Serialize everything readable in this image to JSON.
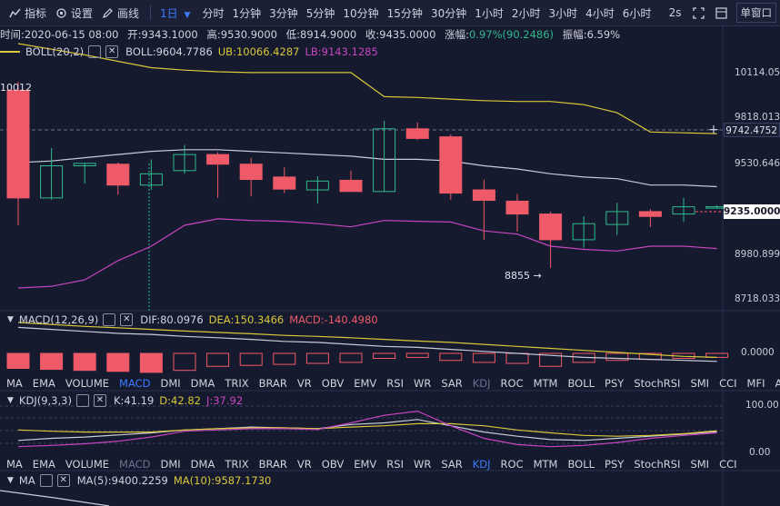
{
  "toolbar": {
    "indicators_label": "指标",
    "settings_label": "设置",
    "draw_label": "画线",
    "interval_selected": "1日",
    "timeframes": [
      "分时",
      "1分钟",
      "3分钟",
      "5分钟",
      "10分钟",
      "15分钟",
      "30分钟",
      "1小时",
      "2小时",
      "3小时",
      "4小时",
      "6小时"
    ],
    "refresh": "2s",
    "window_mode": "单窗口"
  },
  "ohlc": {
    "time": "时间:2020-06-15 08:00",
    "open": "开:9343.1000",
    "high": "高:9530.9000",
    "low": "低:8914.9000",
    "close": "收:9435.0000",
    "change_label": "涨幅:",
    "change_value": "0.97%(90.2486)",
    "amplitude": "振幅:6.59%"
  },
  "boll_legend": {
    "name": "BOLL(20,2)",
    "boll": "BOLL:9604.7786",
    "ub": "UB:10066.4287",
    "lb": "LB:9143.1285"
  },
  "price_axis": [
    "10114.054",
    "9818.0138",
    "9530.6466",
    "8980.8992",
    "8718.0338"
  ],
  "crosshair_price": "9742.4752",
  "last_price": "9235.0000",
  "annotations": {
    "high": "10012",
    "low": "8855 →"
  },
  "macd_legend": {
    "name": "MACD(12,26,9)",
    "dif": "DIF:80.0976",
    "dea": "DEA:150.3466",
    "macd": "MACD:-140.4980"
  },
  "macd_axis": "0.0000",
  "tabs1": [
    "MA",
    "EMA",
    "VOLUME",
    "MACD",
    "DMI",
    "DMA",
    "TRIX",
    "BRAR",
    "VR",
    "OBV",
    "EMV",
    "RSI",
    "WR",
    "SAR",
    "KDJ",
    "ROC",
    "MTM",
    "BOLL",
    "PSY",
    "StochRSI",
    "SMI",
    "CCI",
    "MFI",
    "ATR"
  ],
  "kdj_legend": {
    "name": "KDJ(9,3,3)",
    "k": "K:41.19",
    "d": "D:42.82",
    "j": "J:37.92"
  },
  "kdj_axis": [
    "100.00",
    "0.00"
  ],
  "tabs2": [
    "MA",
    "EMA",
    "VOLUME",
    "MACD",
    "DMI",
    "DMA",
    "TRIX",
    "BRAR",
    "VR",
    "OBV",
    "EMV",
    "RSI",
    "WR",
    "SAR",
    "KDJ",
    "ROC",
    "MTM",
    "BOLL",
    "PSY",
    "StochRSI",
    "SMI",
    "CCI"
  ],
  "ma_legend": {
    "name": "MA",
    "ma5": "MA(5):9400.2259",
    "ma10": "MA(10):9587.1730"
  },
  "colors": {
    "up": "#2fb98d",
    "down": "#ef5a68",
    "accent": "#3a7bff",
    "upper": "#d8c83a",
    "mid": "#c8ccd8",
    "lower": "#c845c0",
    "bg": "#161a2e"
  },
  "chart_data": {
    "type": "candlestick",
    "price_range": [
      8600,
      10250
    ],
    "candles": [
      {
        "o": 9960,
        "h": 10012,
        "l": 9120,
        "c": 9290
      },
      {
        "o": 9290,
        "h": 9600,
        "l": 9280,
        "c": 9490
      },
      {
        "o": 9490,
        "h": 9510,
        "l": 9380,
        "c": 9505
      },
      {
        "o": 9500,
        "h": 9510,
        "l": 9310,
        "c": 9370
      },
      {
        "o": 9370,
        "h": 9530,
        "l": 9340,
        "c": 9440
      },
      {
        "o": 9460,
        "h": 9620,
        "l": 9440,
        "c": 9560
      },
      {
        "o": 9560,
        "h": 9575,
        "l": 9290,
        "c": 9500
      },
      {
        "o": 9500,
        "h": 9540,
        "l": 9300,
        "c": 9405
      },
      {
        "o": 9420,
        "h": 9480,
        "l": 9320,
        "c": 9345
      },
      {
        "o": 9340,
        "h": 9425,
        "l": 9255,
        "c": 9395
      },
      {
        "o": 9400,
        "h": 9460,
        "l": 9330,
        "c": 9330
      },
      {
        "o": 9330,
        "h": 9770,
        "l": 9330,
        "c": 9720
      },
      {
        "o": 9720,
        "h": 9760,
        "l": 9650,
        "c": 9660
      },
      {
        "o": 9670,
        "h": 9685,
        "l": 9280,
        "c": 9320
      },
      {
        "o": 9340,
        "h": 9405,
        "l": 9030,
        "c": 9275
      },
      {
        "o": 9270,
        "h": 9315,
        "l": 9080,
        "c": 9190
      },
      {
        "o": 9190,
        "h": 9205,
        "l": 8855,
        "c": 9030
      },
      {
        "o": 9030,
        "h": 9175,
        "l": 8980,
        "c": 9130
      },
      {
        "o": 9125,
        "h": 9260,
        "l": 9060,
        "c": 9205
      },
      {
        "o": 9205,
        "h": 9220,
        "l": 9110,
        "c": 9175
      },
      {
        "o": 9190,
        "h": 9290,
        "l": 9140,
        "c": 9235
      },
      {
        "o": 9235,
        "h": 9245,
        "l": 9225,
        "c": 9235
      }
    ],
    "boll_upper": [
      10250,
      10215,
      10180,
      10140,
      10100,
      10085,
      10075,
      10070,
      10070,
      10070,
      10070,
      9920,
      9915,
      9905,
      9895,
      9890,
      9890,
      9870,
      9820,
      9700,
      9695,
      9690
    ],
    "boll_mid": [
      9510,
      9520,
      9540,
      9560,
      9580,
      9590,
      9590,
      9580,
      9570,
      9560,
      9550,
      9530,
      9530,
      9520,
      9490,
      9470,
      9440,
      9420,
      9410,
      9370,
      9370,
      9360
    ],
    "boll_lower": [
      8730,
      8740,
      8780,
      8900,
      8990,
      9120,
      9160,
      9150,
      9145,
      9130,
      9110,
      9150,
      9145,
      9140,
      9085,
      9065,
      8990,
      8970,
      8960,
      8990,
      8990,
      8975
    ],
    "macd_hist": [
      -0.75,
      -0.8,
      -0.85,
      -0.9,
      -0.95,
      -0.85,
      -0.65,
      -0.6,
      -0.55,
      -0.5,
      -0.45,
      -0.25,
      -0.2,
      -0.35,
      -0.45,
      -0.5,
      -0.65,
      -0.45,
      -0.35,
      -0.3,
      -0.25,
      -0.2
    ],
    "macd_dif": [
      1.3,
      1.2,
      1.1,
      1.0,
      0.95,
      0.85,
      0.78,
      0.7,
      0.6,
      0.55,
      0.45,
      0.35,
      0.3,
      0.2,
      0.1,
      0.0,
      -0.1,
      -0.2,
      -0.25,
      -0.3,
      -0.35,
      -0.4
    ],
    "macd_dea": [
      1.55,
      1.45,
      1.35,
      1.28,
      1.2,
      1.12,
      1.05,
      0.98,
      0.9,
      0.85,
      0.78,
      0.7,
      0.62,
      0.55,
      0.45,
      0.35,
      0.25,
      0.15,
      0.05,
      -0.05,
      -0.15,
      -0.2
    ],
    "kdj_k": [
      20,
      25,
      28,
      33,
      38,
      45,
      48,
      52,
      50,
      48,
      58,
      62,
      70,
      55,
      40,
      30,
      22,
      20,
      25,
      30,
      35,
      41
    ],
    "kdj_d": [
      45,
      42,
      40,
      40,
      40,
      45,
      48,
      50,
      50,
      48,
      52,
      55,
      60,
      60,
      55,
      45,
      38,
      32,
      30,
      32,
      36,
      43
    ],
    "kdj_j": [
      5,
      8,
      12,
      18,
      28,
      42,
      45,
      48,
      48,
      46,
      62,
      80,
      90,
      55,
      25,
      10,
      5,
      8,
      15,
      25,
      32,
      38
    ]
  }
}
